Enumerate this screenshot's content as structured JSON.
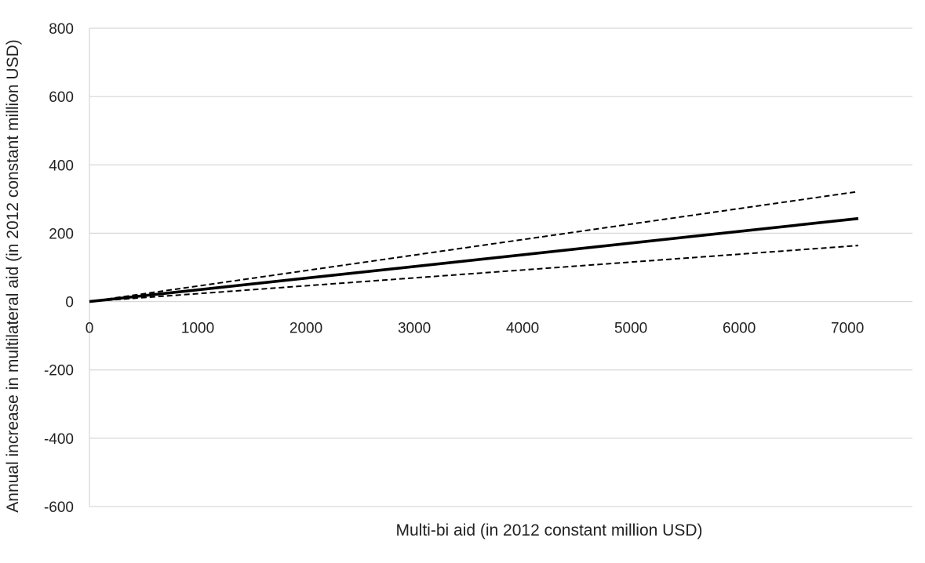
{
  "chart_data": {
    "type": "line",
    "title": "",
    "xlabel": "Multi-bi aid (in 2012 constant million USD)",
    "ylabel": "Annual increase in multilateral aid (in 2012 constant million USD)",
    "xlim": [
      0,
      7600
    ],
    "ylim": [
      -600,
      800
    ],
    "x_ticks": [
      0,
      1000,
      2000,
      3000,
      4000,
      5000,
      6000,
      7000
    ],
    "y_ticks": [
      800,
      600,
      400,
      200,
      0,
      -200,
      -400,
      -600
    ],
    "grid": "horizontal",
    "series": [
      {
        "style": "dashed",
        "x": [
          0,
          7100
        ],
        "y": [
          0,
          322
        ]
      },
      {
        "style": "solid",
        "x": [
          0,
          7100
        ],
        "y": [
          0,
          243
        ]
      },
      {
        "style": "dashed",
        "x": [
          0,
          7100
        ],
        "y": [
          0,
          164
        ]
      }
    ]
  },
  "colors": {
    "gridline": "#d9d9d9",
    "line": "#000000",
    "text": "#222222"
  }
}
